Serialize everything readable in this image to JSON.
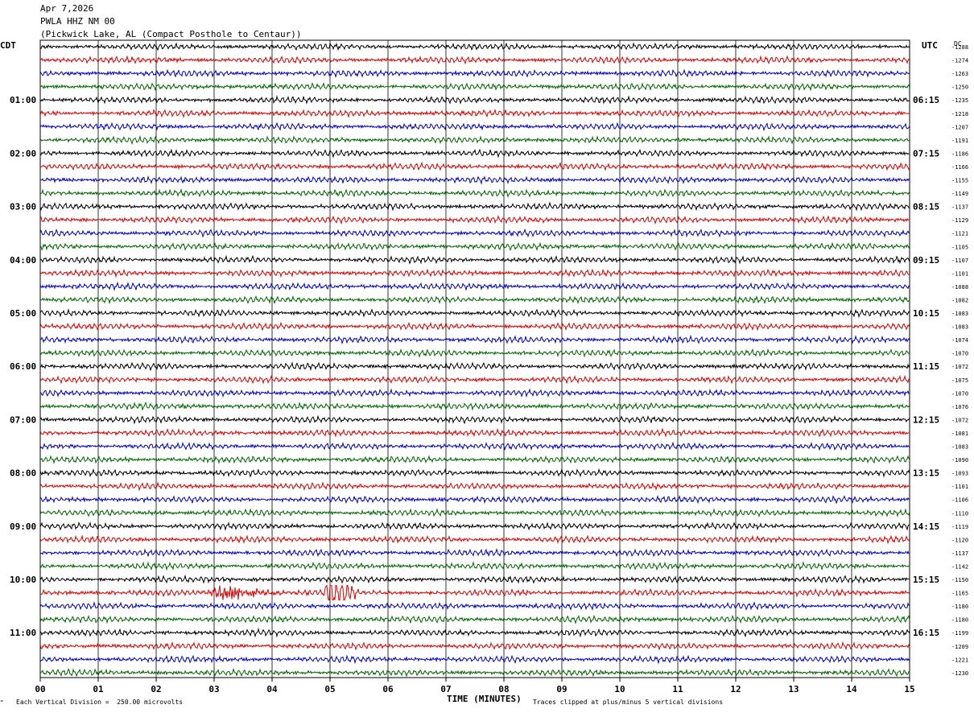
{
  "header": {
    "date": "Apr 7,2026",
    "station": "PWLA HHZ NM 00",
    "location": "(Pickwick Lake, AL (Compact Posthole to Centaur))"
  },
  "left_zone_label": "CDT",
  "right_zone_label": "UTC",
  "dc_label": "DC",
  "footer": {
    "scale_note": "Each Vertical Division =  250.00 microvolts",
    "clip_note": "Traces clipped at plus/minus 5 vertical divisions",
    "corner_mark": "\""
  },
  "chart_data": {
    "type": "line",
    "title": "",
    "xlabel": "TIME (MINUTES)",
    "x_ticks": [
      "00",
      "01",
      "02",
      "03",
      "04",
      "05",
      "06",
      "07",
      "08",
      "09",
      "10",
      "11",
      "12",
      "13",
      "14",
      "15"
    ],
    "xlim": [
      0,
      15
    ],
    "left_time_labels": [
      "01:00",
      "02:00",
      "03:00",
      "04:00",
      "05:00",
      "06:00",
      "07:00",
      "08:00",
      "09:00",
      "10:00",
      "11:00"
    ],
    "right_time_labels": [
      "06:15",
      "07:15",
      "08:15",
      "09:15",
      "10:15",
      "11:15",
      "12:15",
      "13:15",
      "14:15",
      "15:15",
      "16:15"
    ],
    "trace_colors": [
      "#000000",
      "#dd0000",
      "#0000cc",
      "#006600"
    ],
    "trace_count": 48,
    "dc_offsets": [
      -1288,
      -1274,
      -1263,
      -1250,
      -1235,
      -1218,
      -1207,
      -1191,
      -1186,
      -1166,
      -1155,
      -1149,
      -1137,
      -1129,
      -1121,
      -1105,
      -1107,
      -1101,
      -1088,
      -1082,
      -1083,
      -1083,
      -1074,
      -1070,
      -1072,
      -1075,
      -1070,
      -1076,
      -1072,
      -1081,
      -1083,
      -1090,
      -1093,
      -1101,
      -1106,
      -1110,
      -1119,
      -1120,
      -1137,
      -1142,
      -1150,
      -1165,
      -1180,
      -1180,
      -1199,
      -1209,
      -1221,
      -1230
    ],
    "events": [
      {
        "trace": 41,
        "start_min": 4.9,
        "end_min": 5.5,
        "amplitude": 3.0
      },
      {
        "trace": 41,
        "start_min": 2.9,
        "end_min": 4.2,
        "amplitude": 1.4
      }
    ],
    "grid": true
  }
}
